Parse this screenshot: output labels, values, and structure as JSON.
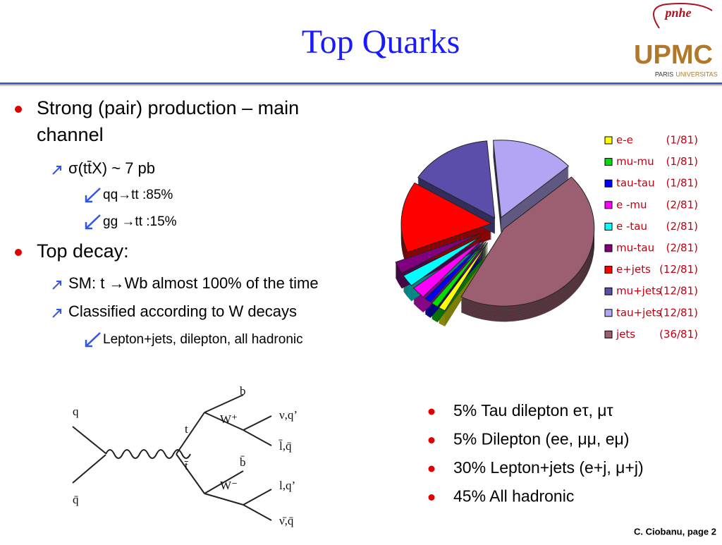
{
  "title": "Top Quarks",
  "logo": {
    "lab": "pnhe",
    "name": "UPMC",
    "city": "PARIS",
    "tag": "UNIVERSITAS"
  },
  "bullets": [
    {
      "level": 1,
      "text": "Strong (pair) production – main"
    },
    {
      "level": 1,
      "text": "channel",
      "continued": true
    },
    {
      "level": 2,
      "text": "σ(tt̄X) ~ 7 pb"
    },
    {
      "level": 3,
      "text": "qq→tt :85%"
    },
    {
      "level": 3,
      "text": "gg →tt :15%"
    },
    {
      "level": 1,
      "text": "Top decay:"
    },
    {
      "level": 2,
      "text": "SM: t →Wb almost 100% of the time"
    },
    {
      "level": 2,
      "text": "Classified according to W decays"
    },
    {
      "level": 3,
      "text": "Lepton+jets, dilepton, all hadronic"
    }
  ],
  "summary": [
    "5% Tau dilepton eτ, μτ",
    "5% Dilepton (ee, μμ, eμ)",
    "30% Lepton+jets (e+j, μ+j)",
    "45% All hadronic"
  ],
  "diagram": {
    "labels": [
      "q",
      "q̄",
      "t",
      "t̄",
      "b",
      "W⁺",
      "ν,q’",
      "l̄,q̄",
      "b̄",
      "W⁻",
      "l,q’",
      "ν̄,q̄"
    ]
  },
  "chart_data": {
    "type": "pie",
    "categories": [
      "tau+jets",
      "jets",
      "e-e",
      "mu-mu",
      "tau-tau",
      "e -mu",
      "e -tau",
      "mu-tau",
      "e+jets",
      "mu+jets"
    ],
    "values": [
      12,
      36,
      1,
      1,
      1,
      2,
      2,
      2,
      12,
      12
    ],
    "value_labels": [
      "(12/81)",
      "(36/81)",
      "(1/81)",
      "(1/81)",
      "(1/81)",
      "(2/81)",
      "(2/81)",
      "(2/81)",
      "(12/81)",
      "(12/81)"
    ],
    "colors": [
      "#b4a4f4",
      "#9c5f72",
      "#ffff00",
      "#00dd00",
      "#0000ff",
      "#ff00ff",
      "#00ffff",
      "#800080",
      "#ff0000",
      "#5a4eaa"
    ],
    "legend_order": [
      2,
      3,
      4,
      5,
      6,
      7,
      8,
      9,
      0,
      1
    ]
  },
  "footer": "C. Ciobanu,  page 2"
}
